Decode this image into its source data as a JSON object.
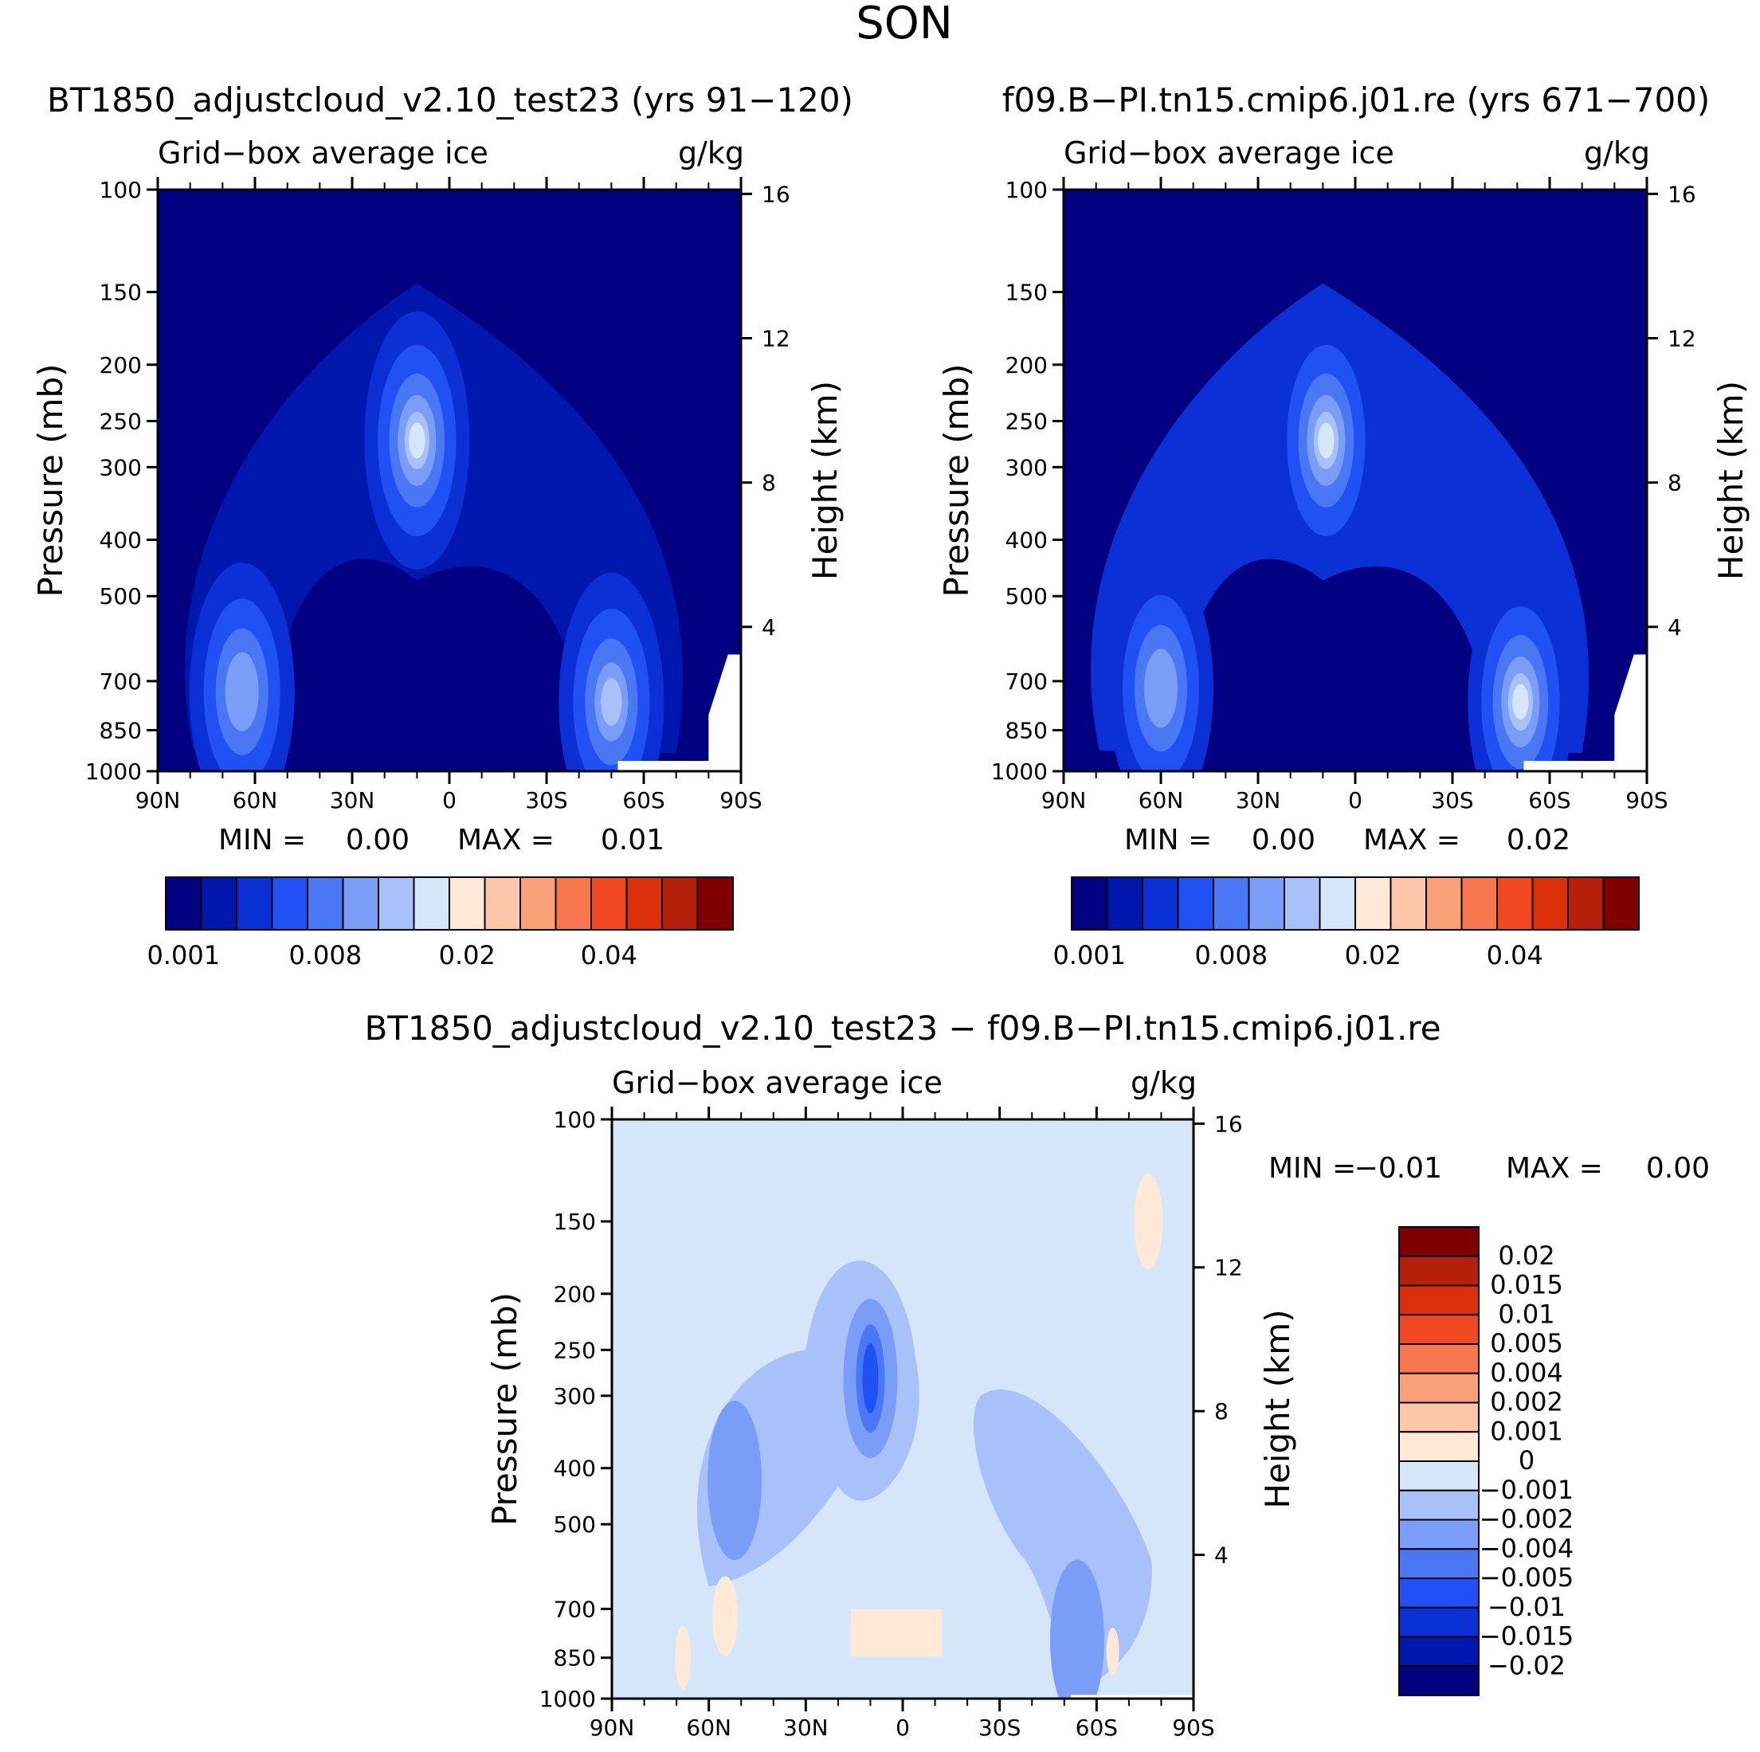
{
  "season": "SON",
  "chart_data": [
    {
      "type": "heatmap",
      "title": "BT1850_adjustcloud_v2.10_test23 (yrs 91−120)",
      "variable": "Grid−box average ice",
      "units": "g/kg",
      "xlabel": "",
      "ylabel": "Pressure (mb)",
      "ylabel_right": "Height (km)",
      "x_ticks": [
        "90N",
        "60N",
        "30N",
        "0",
        "30S",
        "60S",
        "90S"
      ],
      "y_ticks": [
        "100",
        "150",
        "200",
        "250",
        "300",
        "400",
        "500",
        "700",
        "850",
        "1000"
      ],
      "height_ticks": [
        "16",
        "12",
        "8",
        "4"
      ],
      "ylim": [
        1000,
        100
      ],
      "min_label": "MIN =",
      "min_value": "0.00",
      "max_label": "MAX =",
      "max_value": "0.01",
      "colorbar_labels": [
        "0.001",
        "0.008",
        "0.02",
        "0.04"
      ],
      "colorbar_colors": [
        "#000080",
        "#0017ad",
        "#0b31d6",
        "#2151f5",
        "#4a78f5",
        "#7a9ef7",
        "#a8c1f9",
        "#d5e6fb",
        "#fde9d5",
        "#fcc7a8",
        "#f9a079",
        "#f7774e",
        "#f04820",
        "#db3009",
        "#b5200a",
        "#800000"
      ],
      "features": [
        {
          "lat": 10,
          "p": 270,
          "level": 7
        },
        {
          "lat": 64,
          "p": 730,
          "level": 5
        },
        {
          "lat": -50,
          "p": 760,
          "level": 6
        }
      ]
    },
    {
      "type": "heatmap",
      "title": "f09.B−PI.tn15.cmip6.j01.re (yrs 671−700)",
      "variable": "Grid−box average ice",
      "units": "g/kg",
      "xlabel": "",
      "ylabel": "Pressure (mb)",
      "ylabel_right": "Height (km)",
      "x_ticks": [
        "90N",
        "60N",
        "30N",
        "0",
        "30S",
        "60S",
        "90S"
      ],
      "y_ticks": [
        "100",
        "150",
        "200",
        "250",
        "300",
        "400",
        "500",
        "700",
        "850",
        "1000"
      ],
      "height_ticks": [
        "16",
        "12",
        "8",
        "4"
      ],
      "ylim": [
        1000,
        100
      ],
      "min_label": "MIN =",
      "min_value": "0.00",
      "max_label": "MAX =",
      "max_value": "0.02",
      "colorbar_labels": [
        "0.001",
        "0.008",
        "0.02",
        "0.04"
      ],
      "colorbar_colors": [
        "#000080",
        "#0017ad",
        "#0b31d6",
        "#2151f5",
        "#4a78f5",
        "#7a9ef7",
        "#a8c1f9",
        "#d5e6fb",
        "#fde9d5",
        "#fcc7a8",
        "#f9a079",
        "#f7774e",
        "#f04820",
        "#db3009",
        "#b5200a",
        "#800000"
      ],
      "features": [
        {
          "lat": 9,
          "p": 270,
          "level": 8
        },
        {
          "lat": 60,
          "p": 720,
          "level": 5
        },
        {
          "lat": -51,
          "p": 760,
          "level": 7
        }
      ]
    },
    {
      "type": "heatmap",
      "title": "BT1850_adjustcloud_v2.10_test23 − f09.B−PI.tn15.cmip6.j01.re",
      "variable": "Grid−box average ice",
      "units": "g/kg",
      "xlabel": "",
      "ylabel": "Pressure (mb)",
      "ylabel_right": "Height (km)",
      "x_ticks": [
        "90N",
        "60N",
        "30N",
        "0",
        "30S",
        "60S",
        "90S"
      ],
      "y_ticks": [
        "100",
        "150",
        "200",
        "250",
        "300",
        "400",
        "500",
        "700",
        "850",
        "1000"
      ],
      "height_ticks": [
        "16",
        "12",
        "8",
        "4"
      ],
      "ylim": [
        1000,
        100
      ],
      "min_label": "MIN =",
      "min_value": "−0.01",
      "max_label": "MAX =",
      "max_value": "0.00",
      "colorbar_labels": [
        "0.02",
        "0.015",
        "0.01",
        "0.005",
        "0.004",
        "0.002",
        "0.001",
        "0",
        "−0.001",
        "−0.002",
        "−0.004",
        "−0.005",
        "−0.01",
        "−0.015",
        "−0.02"
      ],
      "colorbar_colors": [
        "#800000",
        "#b5200a",
        "#db3009",
        "#f04820",
        "#f7774e",
        "#f9a079",
        "#fcc7a8",
        "#fde9d5",
        "#d5e6fb",
        "#a8c1f9",
        "#7a9ef7",
        "#4a78f5",
        "#2151f5",
        "#0b31d6",
        "#0017ad",
        "#000080"
      ],
      "features": [
        {
          "lat": 10,
          "p": 280,
          "level": 12
        },
        {
          "lat": 52,
          "p": 420,
          "level": 10
        },
        {
          "lat": -54,
          "p": 790,
          "level": 10
        }
      ]
    }
  ]
}
